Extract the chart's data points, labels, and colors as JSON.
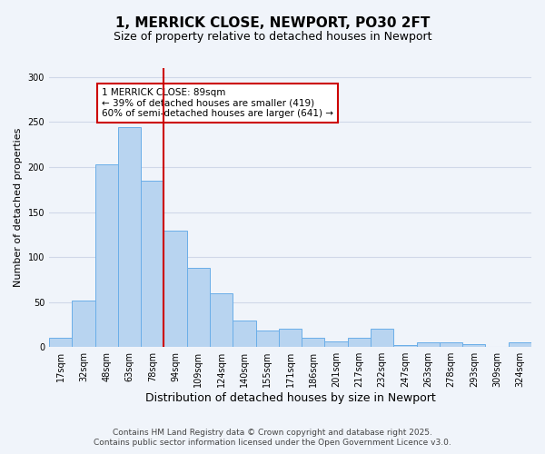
{
  "title": "1, MERRICK CLOSE, NEWPORT, PO30 2FT",
  "subtitle": "Size of property relative to detached houses in Newport",
  "xlabel": "Distribution of detached houses by size in Newport",
  "ylabel": "Number of detached properties",
  "bar_labels": [
    "17sqm",
    "32sqm",
    "48sqm",
    "63sqm",
    "78sqm",
    "94sqm",
    "109sqm",
    "124sqm",
    "140sqm",
    "155sqm",
    "171sqm",
    "186sqm",
    "201sqm",
    "217sqm",
    "232sqm",
    "247sqm",
    "263sqm",
    "278sqm",
    "293sqm",
    "309sqm",
    "324sqm"
  ],
  "bar_values": [
    10,
    52,
    203,
    244,
    185,
    129,
    88,
    60,
    29,
    18,
    20,
    10,
    6,
    10,
    20,
    2,
    5,
    5,
    3,
    0,
    5
  ],
  "bar_color": "#b8d4f0",
  "bar_edge_color": "#6aaee8",
  "vline_x_index": 4,
  "vline_color": "#cc0000",
  "ylim": [
    0,
    310
  ],
  "yticks": [
    0,
    50,
    100,
    150,
    200,
    250,
    300
  ],
  "annotation_text": "1 MERRICK CLOSE: 89sqm\n← 39% of detached houses are smaller (419)\n60% of semi-detached houses are larger (641) →",
  "annotation_box_color": "#ffffff",
  "annotation_box_edge": "#cc0000",
  "footer1": "Contains HM Land Registry data © Crown copyright and database right 2025.",
  "footer2": "Contains public sector information licensed under the Open Government Licence v3.0.",
  "background_color": "#f0f4fa",
  "grid_color": "#d0d8e8",
  "title_fontsize": 11,
  "subtitle_fontsize": 9,
  "ylabel_fontsize": 8,
  "xlabel_fontsize": 9,
  "tick_fontsize": 7,
  "footer_fontsize": 6.5,
  "annotation_fontsize": 7.5
}
